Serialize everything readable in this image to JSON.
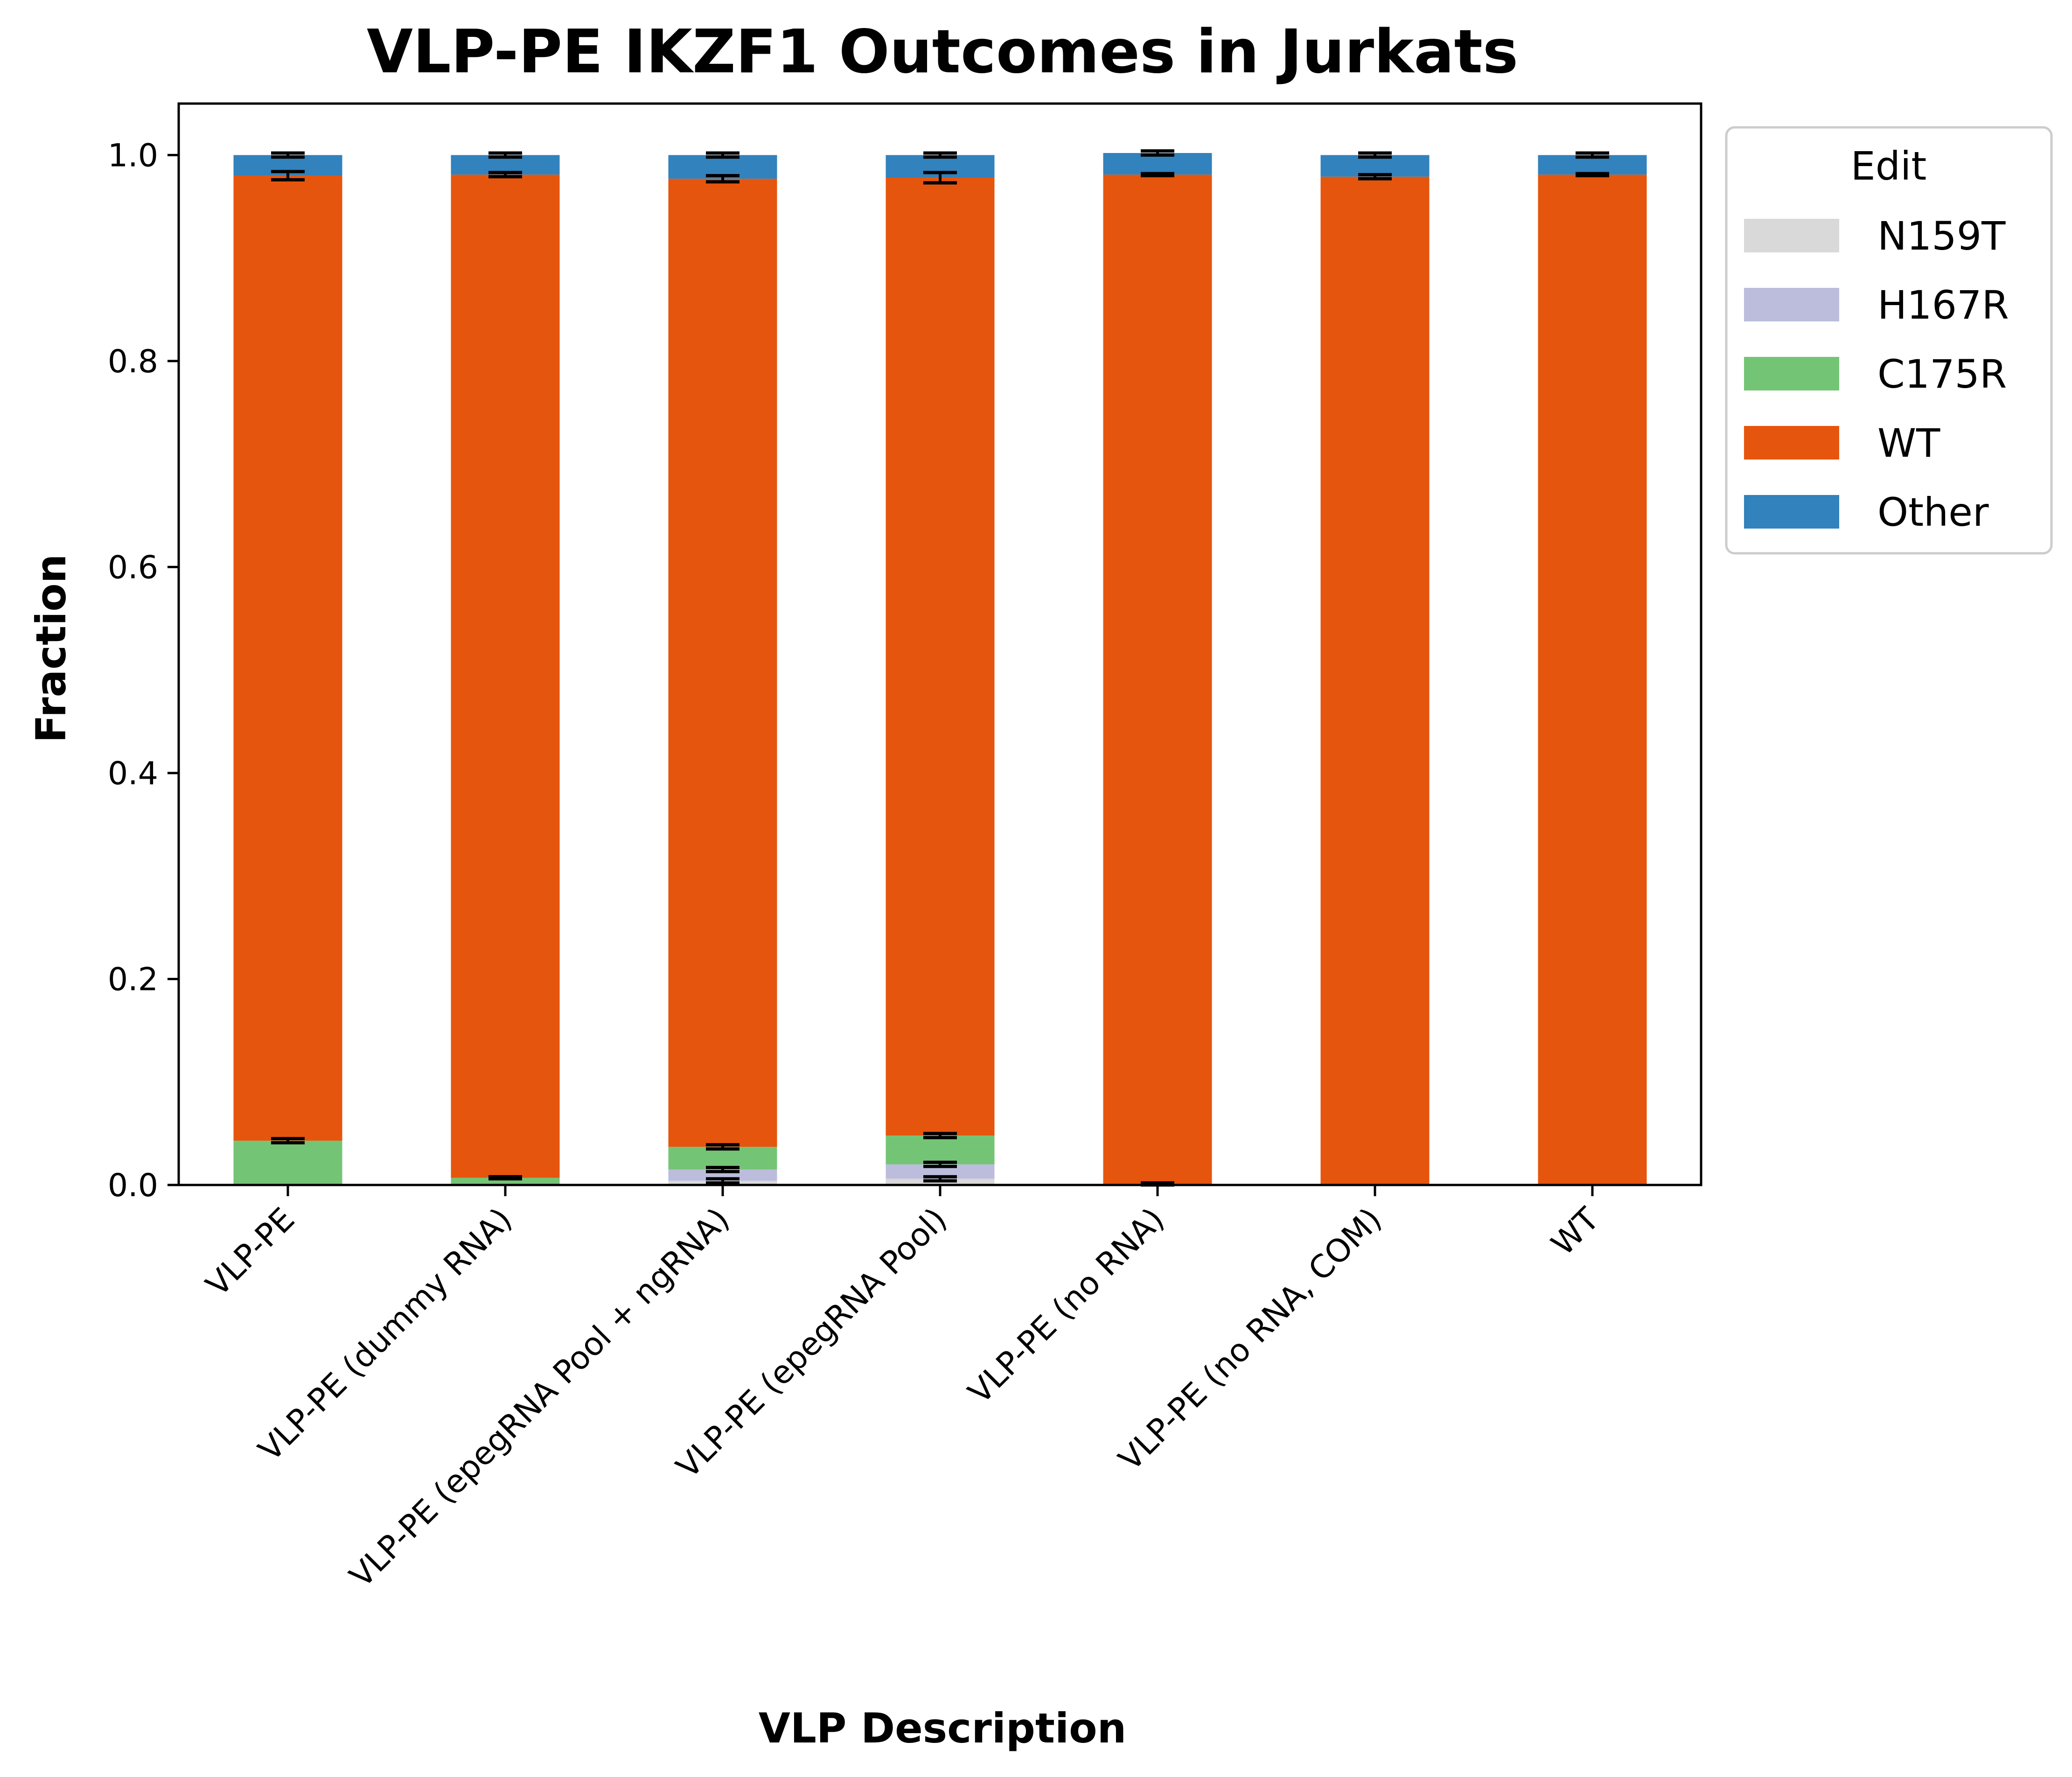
{
  "chart_data": {
    "type": "bar",
    "stacked": true,
    "title": "VLP-PE IKZF1 Outcomes in Jurkats",
    "xlabel": "VLP Description",
    "ylabel": "Fraction",
    "ylim": [
      0,
      1.05
    ],
    "yticks": [
      "0.0",
      "0.2",
      "0.4",
      "0.6",
      "0.8",
      "1.0"
    ],
    "grid": false,
    "legend": {
      "title": "Edit",
      "placement": "outside-right"
    },
    "categories": [
      "VLP-PE",
      "VLP-PE (dummy RNA)",
      "VLP-PE (epegRNA Pool + ngRNA)",
      "VLP-PE (epegRNA Pool)",
      "VLP-PE (no RNA)",
      "VLP-PE (no RNA, COM)",
      "WT"
    ],
    "series": [
      {
        "name": "N159T",
        "color": "#d9d9d9",
        "values": [
          0.0,
          0.0,
          0.004,
          0.006,
          0.0,
          0.0,
          0.0
        ],
        "errors": [
          0.0,
          0.0,
          0.002,
          0.002,
          0.0,
          0.0,
          0.0
        ]
      },
      {
        "name": "H167R",
        "color": "#bcbddc",
        "values": [
          0.0,
          0.0,
          0.011,
          0.014,
          0.0,
          0.0,
          0.0
        ],
        "errors": [
          0.0,
          0.0,
          0.002,
          0.002,
          0.0,
          0.0,
          0.0
        ]
      },
      {
        "name": "C175R",
        "color": "#74c476",
        "values": [
          0.043,
          0.007,
          0.022,
          0.028,
          0.001,
          0.0,
          0.0
        ],
        "errors": [
          0.002,
          0.001,
          0.002,
          0.002,
          0.001,
          0.0,
          0.0
        ]
      },
      {
        "name": "WT",
        "color": "#e6550d",
        "values": [
          0.937,
          0.974,
          0.94,
          0.93,
          0.98,
          0.979,
          0.981
        ],
        "errors": [
          0.004,
          0.002,
          0.003,
          0.005,
          0.001,
          0.002,
          0.001
        ]
      },
      {
        "name": "Other",
        "color": "#3182bd",
        "values": [
          0.02,
          0.019,
          0.023,
          0.022,
          0.021,
          0.021,
          0.019
        ],
        "errors": [
          0.002,
          0.002,
          0.002,
          0.002,
          0.002,
          0.002,
          0.002
        ]
      }
    ]
  }
}
